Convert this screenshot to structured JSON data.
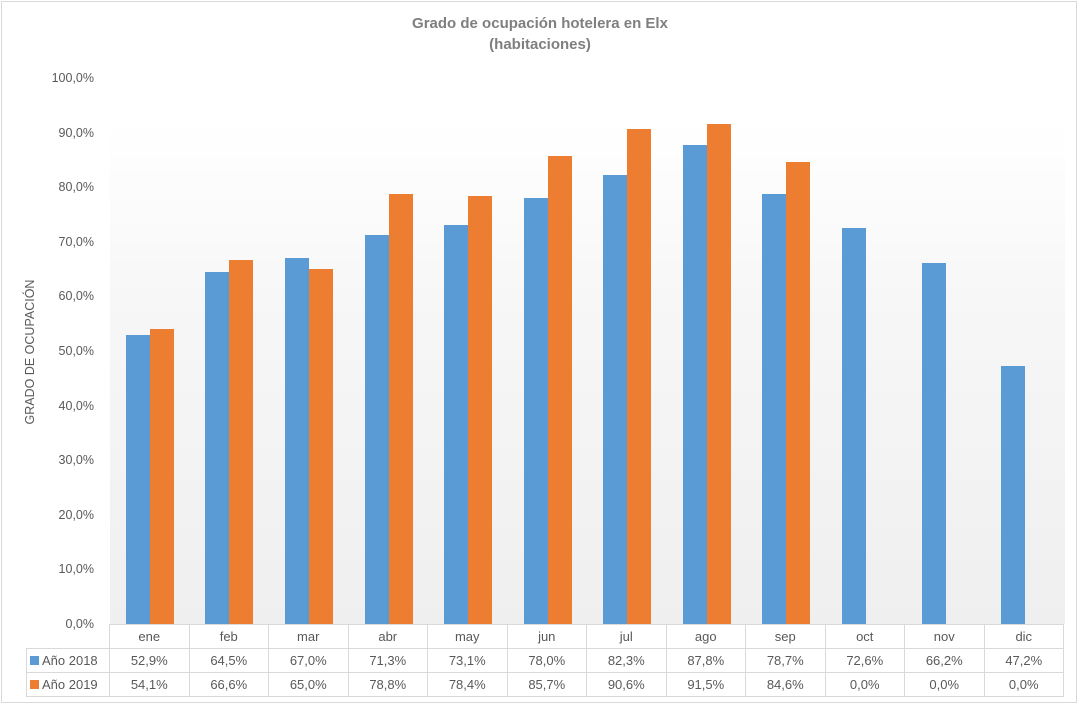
{
  "chart_data": {
    "type": "bar",
    "title": "Grado de ocupación hotelera en Elx",
    "subtitle": "(habitaciones)",
    "xlabel": "",
    "ylabel": "GRADO DE OCUPACIÓN",
    "ylim": [
      0,
      100
    ],
    "yticks": [
      "0,0%",
      "10,0%",
      "20,0%",
      "30,0%",
      "40,0%",
      "50,0%",
      "60,0%",
      "70,0%",
      "80,0%",
      "90,0%",
      "100,0%"
    ],
    "categories": [
      "ene",
      "feb",
      "mar",
      "abr",
      "may",
      "jun",
      "jul",
      "ago",
      "sep",
      "oct",
      "nov",
      "dic"
    ],
    "series": [
      {
        "name": "Año 2018",
        "color": "#5b9bd5",
        "values": [
          52.9,
          64.5,
          67.0,
          71.3,
          73.1,
          78.0,
          82.3,
          87.8,
          78.7,
          72.6,
          66.2,
          47.2
        ],
        "labels": [
          "52,9%",
          "64,5%",
          "67,0%",
          "71,3%",
          "73,1%",
          "78,0%",
          "82,3%",
          "87,8%",
          "78,7%",
          "72,6%",
          "66,2%",
          "47,2%"
        ]
      },
      {
        "name": "Año 2019",
        "color": "#ed7d31",
        "values": [
          54.1,
          66.6,
          65.0,
          78.8,
          78.4,
          85.7,
          90.6,
          91.5,
          84.6,
          0.0,
          0.0,
          0.0
        ],
        "labels": [
          "54,1%",
          "66,6%",
          "65,0%",
          "78,8%",
          "78,4%",
          "85,7%",
          "90,6%",
          "91,5%",
          "84,6%",
          "0,0%",
          "0,0%",
          "0,0%"
        ]
      }
    ],
    "legend_position": "data-table",
    "grid": false
  }
}
